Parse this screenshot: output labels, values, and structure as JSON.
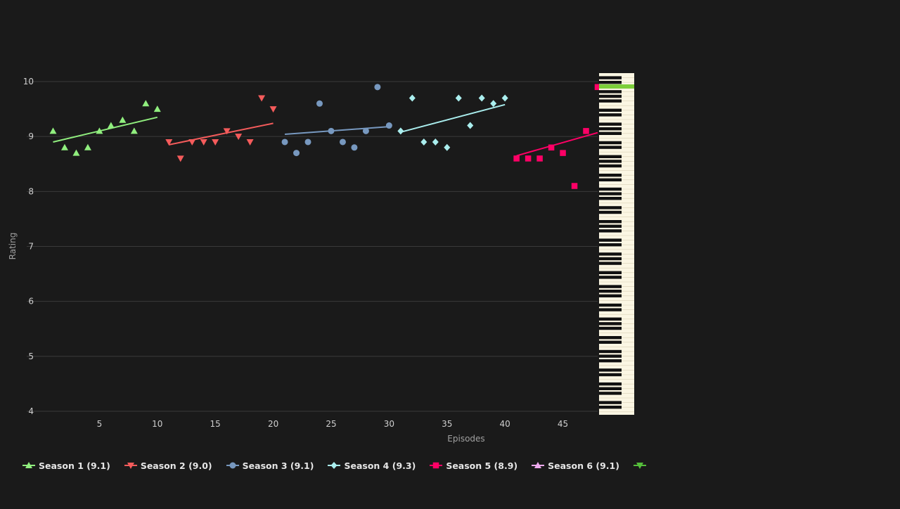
{
  "chart_data": {
    "type": "scatter",
    "xlabel": "Episodes",
    "ylabel": "Rating",
    "xlim": [
      0,
      48
    ],
    "ylim": [
      4,
      10
    ],
    "xticks": [
      5,
      10,
      15,
      20,
      25,
      30,
      35,
      40,
      45
    ],
    "yticks": [
      4,
      5,
      6,
      7,
      8,
      9,
      10
    ],
    "grid": "horizontal",
    "legend_position": "bottom",
    "series": [
      {
        "name": "Season 1 (9.1)",
        "color": "#90ee7e",
        "marker": "triangle-up",
        "x": [
          1,
          2,
          3,
          4,
          5,
          6,
          7,
          8,
          9,
          10
        ],
        "y": [
          9.1,
          8.8,
          8.7,
          8.8,
          9.1,
          9.2,
          9.3,
          9.1,
          9.6,
          9.5
        ],
        "trend": [
          [
            1,
            8.9
          ],
          [
            10,
            9.35
          ]
        ]
      },
      {
        "name": "Season 2 (9.0)",
        "color": "#f45b5b",
        "marker": "triangle-down",
        "x": [
          11,
          12,
          13,
          14,
          15,
          16,
          17,
          18,
          19,
          20
        ],
        "y": [
          8.9,
          8.6,
          8.9,
          8.9,
          8.9,
          9.1,
          9.0,
          8.9,
          9.7,
          9.5
        ],
        "trend": [
          [
            11,
            8.85
          ],
          [
            20,
            9.24
          ]
        ]
      },
      {
        "name": "Season 3 (9.1)",
        "color": "#7798bf",
        "marker": "circle",
        "x": [
          21,
          22,
          23,
          24,
          25,
          26,
          27,
          28,
          29,
          30
        ],
        "y": [
          8.9,
          8.7,
          8.9,
          9.6,
          9.1,
          8.9,
          8.8,
          9.1,
          9.9,
          9.2
        ],
        "trend": [
          [
            21,
            9.04
          ],
          [
            30,
            9.18
          ]
        ]
      },
      {
        "name": "Season 4 (9.3)",
        "color": "#aaeeee",
        "marker": "diamond",
        "x": [
          31,
          32,
          33,
          34,
          35,
          36,
          37,
          38,
          39,
          40
        ],
        "y": [
          9.1,
          9.7,
          8.9,
          8.9,
          8.8,
          9.7,
          9.2,
          9.7,
          9.6,
          9.7
        ],
        "trend": [
          [
            31,
            9.08
          ],
          [
            40,
            9.58
          ]
        ]
      },
      {
        "name": "Season 5 (8.9)",
        "color": "#ff0066",
        "marker": "square",
        "x": [
          41,
          42,
          43,
          44,
          45,
          46,
          47,
          48
        ],
        "y": [
          8.6,
          8.6,
          8.6,
          8.8,
          8.7,
          8.1,
          9.1,
          9.9
        ],
        "trend": [
          [
            41,
            8.65
          ],
          [
            48,
            9.07
          ]
        ]
      },
      {
        "name": "Season 6 (9.1)",
        "color": "#eeaaee",
        "marker": "triangle-up",
        "x": [],
        "y": [],
        "trend": null
      },
      {
        "name": "",
        "color": "#55bf3b",
        "marker": "triangle-down",
        "x": [],
        "y": [],
        "trend": null
      }
    ]
  },
  "overlay": {
    "type": "piano-keyboard",
    "highlight_color": "#7ccf3a"
  }
}
